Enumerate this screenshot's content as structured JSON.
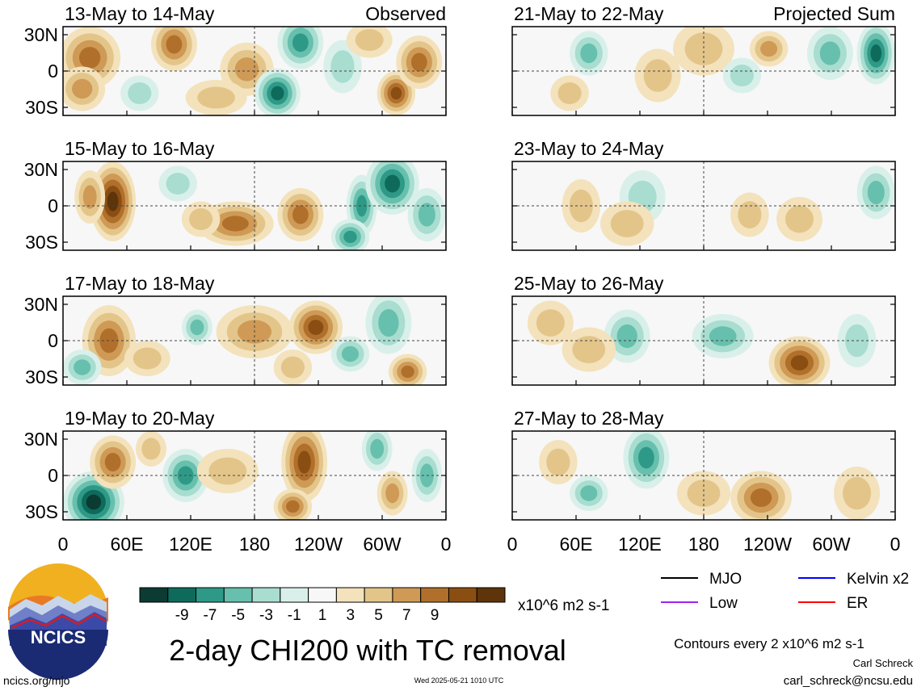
{
  "chart_data": {
    "type": "heatmap",
    "title": "2-day CHI200 with TC removal",
    "columns": [
      {
        "label": "Observed",
        "panels": [
          "13-May to 14-May",
          "15-May to 16-May",
          "17-May to 18-May",
          "19-May to 20-May"
        ]
      },
      {
        "label": "Projected Sum",
        "panels": [
          "21-May to 22-May",
          "23-May to 24-May",
          "25-May to 26-May",
          "27-May to 28-May"
        ]
      }
    ],
    "x_ticks": [
      "0",
      "60E",
      "120E",
      "180",
      "120W",
      "60W",
      "0"
    ],
    "y_ticks": [
      "30N",
      "0",
      "30S"
    ],
    "colorbar": {
      "levels": [
        "-9",
        "-7",
        "-5",
        "-3",
        "-1",
        "1",
        "3",
        "5",
        "7",
        "9"
      ],
      "colors": [
        "#0b3b32",
        "#0e6b5c",
        "#2f9987",
        "#66c0ad",
        "#a8ddd0",
        "#d9f0ea",
        "#f7f7f7",
        "#f3e2bb",
        "#e3c58a",
        "#cf9a55",
        "#b0702c",
        "#8a4e12",
        "#5e340a"
      ],
      "units": "x10^6 m2 s-1"
    },
    "legend": [
      {
        "label": "MJO",
        "color": "#000000"
      },
      {
        "label": "Kelvin x2",
        "color": "#0000ff"
      },
      {
        "label": "Low",
        "color": "#a020f0"
      },
      {
        "label": "ER",
        "color": "#ff0000"
      }
    ],
    "contour_note": "Contours every 2 x10^6 m2 s-1"
  },
  "footer": {
    "logo_text": "NCICS",
    "site": "ncics.org/mjo",
    "timestamp": "Wed 2025-05-21 1010 UTC",
    "author": "Carl Schreck",
    "email": "carl_schreck@ncsu.edu"
  }
}
